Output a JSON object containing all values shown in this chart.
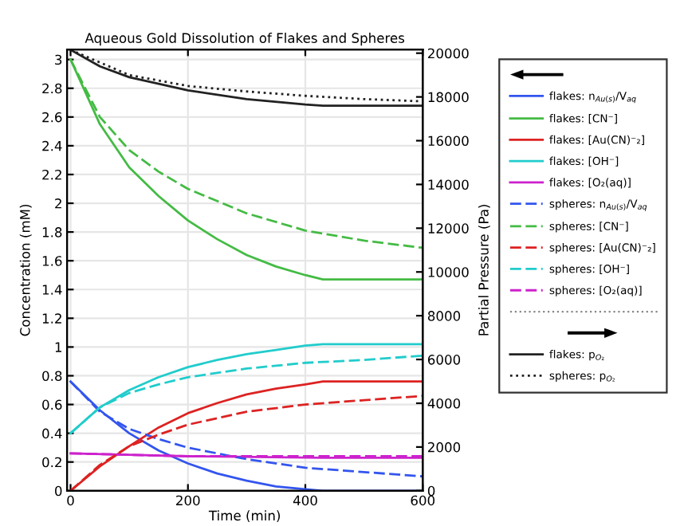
{
  "chart_data": {
    "type": "line",
    "title": "Aqueous Gold Dissolution of Flakes and Spheres",
    "xlabel": "Time (min)",
    "ylabel": "Concentration (mM)",
    "y2label": "Partial Pressure (Pa)",
    "xlim": [
      -6,
      600
    ],
    "xticks": [
      0,
      200,
      400,
      600
    ],
    "ylim": [
      0,
      3.07
    ],
    "yticks": [
      0,
      0.2,
      0.4,
      0.6,
      0.8,
      1,
      1.2,
      1.4,
      1.6,
      1.8,
      2,
      2.2,
      2.4,
      2.6,
      2.8,
      3
    ],
    "y2lim": [
      0,
      20170
    ],
    "y2ticks": [
      0,
      2000,
      4000,
      6000,
      8000,
      10000,
      12000,
      14000,
      16000,
      18000,
      20000
    ],
    "grid": true,
    "legend": "right",
    "series": [
      {
        "name": "flakes: n$_{Au(s)}$/V$_{aq}$",
        "color": "#3355ee",
        "line_style": "solid",
        "x": [
          0,
          50,
          100,
          150,
          200,
          250,
          300,
          350,
          400,
          430,
          600
        ],
        "values": [
          0.76,
          0.56,
          0.4,
          0.28,
          0.19,
          0.12,
          0.07,
          0.03,
          0.01,
          0,
          0
        ]
      },
      {
        "name": "flakes: [CN⁻]",
        "color": "#44bb44",
        "line_style": "solid",
        "x": [
          0,
          50,
          100,
          150,
          200,
          250,
          300,
          350,
          400,
          430,
          600
        ],
        "values": [
          3.0,
          2.55,
          2.25,
          2.05,
          1.88,
          1.75,
          1.64,
          1.56,
          1.5,
          1.47,
          1.47
        ]
      },
      {
        "name": "flakes: [Au(CN)⁻₂]",
        "color": "#dd2222",
        "line_style": "solid",
        "x": [
          0,
          50,
          100,
          150,
          200,
          250,
          300,
          350,
          400,
          430,
          600
        ],
        "values": [
          0,
          0.17,
          0.31,
          0.44,
          0.54,
          0.61,
          0.67,
          0.71,
          0.74,
          0.76,
          0.76
        ]
      },
      {
        "name": "flakes: [OH⁻]",
        "color": "#22cccc",
        "line_style": "solid",
        "x": [
          0,
          50,
          100,
          150,
          200,
          250,
          300,
          350,
          400,
          430,
          600
        ],
        "values": [
          0.4,
          0.58,
          0.7,
          0.79,
          0.86,
          0.91,
          0.95,
          0.98,
          1.01,
          1.02,
          1.02
        ]
      },
      {
        "name": "flakes: [O₂(aq)]",
        "color": "#cc22cc",
        "line_style": "solid",
        "x": [
          0,
          100,
          200,
          430,
          600
        ],
        "values": [
          0.26,
          0.25,
          0.24,
          0.23,
          0.23
        ]
      },
      {
        "name": "spheres: n$_{Au(s)}$/V$_{aq}$",
        "color": "#3355ee",
        "line_style": "dashed",
        "x": [
          0,
          50,
          100,
          150,
          200,
          300,
          400,
          500,
          600
        ],
        "values": [
          0.76,
          0.55,
          0.43,
          0.36,
          0.3,
          0.22,
          0.16,
          0.13,
          0.1
        ]
      },
      {
        "name": "spheres: [CN⁻]",
        "color": "#44bb44",
        "line_style": "dashed",
        "x": [
          0,
          50,
          100,
          150,
          200,
          300,
          400,
          500,
          600
        ],
        "values": [
          3.0,
          2.6,
          2.37,
          2.22,
          2.1,
          1.93,
          1.81,
          1.74,
          1.69
        ]
      },
      {
        "name": "spheres: [Au(CN)⁻₂]",
        "color": "#dd2222",
        "line_style": "dashed",
        "x": [
          0,
          50,
          100,
          150,
          200,
          300,
          400,
          500,
          600
        ],
        "values": [
          0,
          0.18,
          0.31,
          0.39,
          0.46,
          0.55,
          0.6,
          0.63,
          0.66
        ]
      },
      {
        "name": "spheres: [OH⁻]",
        "color": "#22cccc",
        "line_style": "dashed",
        "x": [
          0,
          50,
          100,
          150,
          200,
          300,
          400,
          500,
          600
        ],
        "values": [
          0.4,
          0.58,
          0.68,
          0.74,
          0.79,
          0.85,
          0.89,
          0.91,
          0.94
        ]
      },
      {
        "name": "spheres: [O₂(aq)]",
        "color": "#cc22cc",
        "line_style": "dashed",
        "x": [
          0,
          200,
          600
        ],
        "values": [
          0.26,
          0.24,
          0.24
        ]
      },
      {
        "name": "flakes: p$_{O₂}$",
        "color": "#222222",
        "line_style": "solid",
        "axis": "y2",
        "x": [
          0,
          50,
          100,
          200,
          300,
          400,
          430,
          600
        ],
        "values": [
          20150,
          19400,
          18900,
          18300,
          17900,
          17650,
          17600,
          17600
        ]
      },
      {
        "name": "spheres: p$_{O₂}$",
        "color": "#222222",
        "line_style": "dotted",
        "axis": "y2",
        "x": [
          0,
          100,
          200,
          300,
          400,
          500,
          600
        ],
        "values": [
          20150,
          19000,
          18500,
          18250,
          18050,
          17900,
          17800
        ]
      }
    ]
  }
}
